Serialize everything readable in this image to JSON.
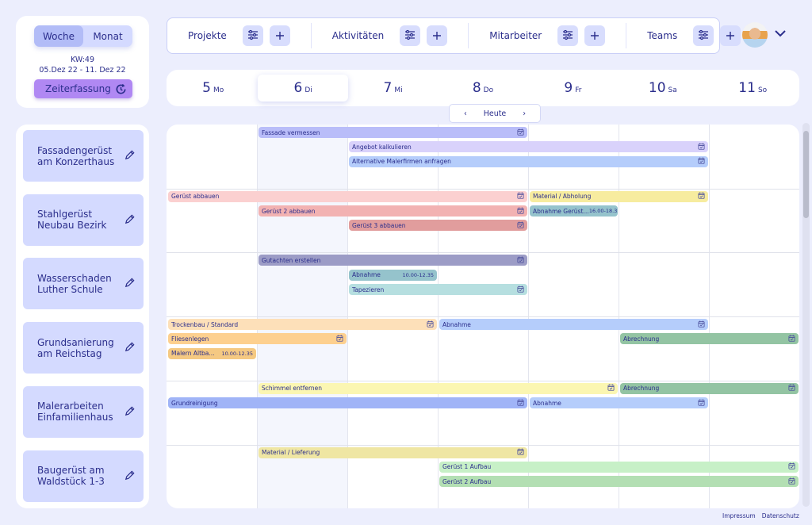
{
  "view_toggle": {
    "week": "Woche",
    "month": "Monat",
    "active": "week"
  },
  "week": {
    "kw": "KW:49",
    "range": "05.Dez 22 - 11. Dez 22"
  },
  "time_tracking_button": "Zeiterfassung",
  "filters": [
    {
      "label": "Projekte"
    },
    {
      "label": "Aktivitäten"
    },
    {
      "label": "Mitarbeiter"
    },
    {
      "label": "Teams"
    }
  ],
  "days": [
    {
      "num": "5",
      "wd": "Mo"
    },
    {
      "num": "6",
      "wd": "Di"
    },
    {
      "num": "7",
      "wd": "Mi"
    },
    {
      "num": "8",
      "wd": "Do"
    },
    {
      "num": "9",
      "wd": "Fr"
    },
    {
      "num": "10",
      "wd": "Sa"
    },
    {
      "num": "11",
      "wd": "So"
    }
  ],
  "selected_day": 1,
  "today_label": "Heute",
  "projects": [
    {
      "name": "Fassadengerüst am Konzerthaus",
      "events": [
        {
          "title": "Fassade vermessen",
          "start": 1,
          "span": 3,
          "lane": 0,
          "color": "#b9bdf9"
        },
        {
          "title": "Angebot kalkulieren",
          "start": 2,
          "span": 4,
          "lane": 1,
          "color": "#d9d2fb"
        },
        {
          "title": "Alternative Malerfirmen anfragen",
          "start": 2,
          "span": 4,
          "lane": 2,
          "color": "#b5cdfb"
        }
      ]
    },
    {
      "name": "Stahlgerüst Neubau Bezirk",
      "events": [
        {
          "title": "Gerüst abbauen",
          "start": 0,
          "span": 4,
          "lane": 0,
          "color": "#fbd0d0"
        },
        {
          "title": "Material / Abholung",
          "start": 4,
          "span": 2,
          "lane": 0,
          "color": "#f7ec9f"
        },
        {
          "title": "Gerüst 2 abbauen",
          "start": 1,
          "span": 3,
          "lane": 1,
          "color": "#f2b2b2"
        },
        {
          "title": "Abnahme Gerüst…",
          "time": "16.00-18.35",
          "start": 4,
          "span": 1,
          "lane": 1,
          "color": "#95c3cc"
        },
        {
          "title": "Gerüst 3 abbauen",
          "start": 2,
          "span": 2,
          "lane": 2,
          "color": "#e19d9d"
        }
      ]
    },
    {
      "name": "Wasserschaden Luther Schule",
      "events": [
        {
          "title": "Gutachten erstellen",
          "start": 1,
          "span": 3,
          "lane": 0,
          "color": "#9c9cc6"
        },
        {
          "title": "Abnahme",
          "time": "10.00-12.35",
          "start": 2,
          "span": 1,
          "lane": 1,
          "color": "#95c3cc"
        },
        {
          "title": "Tapezieren",
          "start": 2,
          "span": 2,
          "lane": 2,
          "color": "#b6dfe0"
        }
      ]
    },
    {
      "name": "Grundsanierung am Reichstag",
      "events": [
        {
          "title": "Trockenbau / Standard",
          "start": 0,
          "span": 3,
          "lane": 0,
          "color": "#fde0b9"
        },
        {
          "title": "Abnahme",
          "start": 3,
          "span": 3,
          "lane": 0,
          "color": "#b5cdfb"
        },
        {
          "title": "Fliesenlegen",
          "start": 0,
          "span": 2,
          "lane": 1,
          "color": "#fdd08f"
        },
        {
          "title": "Abrechnung",
          "start": 5,
          "span": 2,
          "lane": 1,
          "color": "#93c4a3"
        },
        {
          "title": "Malern Altba...",
          "time": "10.00-12.35",
          "start": 0,
          "span": 1,
          "lane": 2,
          "color": "#f5c982"
        }
      ]
    },
    {
      "name": "Malerarbeiten Einfamilienhaus",
      "events": [
        {
          "title": "Schimmel entfernen",
          "start": 1,
          "span": 4,
          "lane": 0,
          "color": "#fbf6b2"
        },
        {
          "title": "Abrechnung",
          "start": 5,
          "span": 2,
          "lane": 0,
          "color": "#93c4a3"
        },
        {
          "title": "Grundreinigung",
          "start": 0,
          "span": 4,
          "lane": 1,
          "color": "#a0b4f7"
        },
        {
          "title": "Abnahme",
          "start": 4,
          "span": 2,
          "lane": 1,
          "color": "#b5cdfb"
        }
      ]
    },
    {
      "name": "Baugerüst am Waldstück 1-3",
      "events": [
        {
          "title": "Material / Lieferung",
          "start": 1,
          "span": 3,
          "lane": 0,
          "color": "#efe6a3"
        },
        {
          "title": "Gerüst 1 Aufbau",
          "start": 3,
          "span": 4,
          "lane": 1,
          "color": "#c7f0c7"
        },
        {
          "title": "Gerüst 2 Aufbau",
          "start": 3,
          "span": 4,
          "lane": 2,
          "color": "#b3dfb3"
        }
      ]
    }
  ],
  "footer": {
    "impressum": "Impressum",
    "datenschutz": "Datenschutz"
  }
}
